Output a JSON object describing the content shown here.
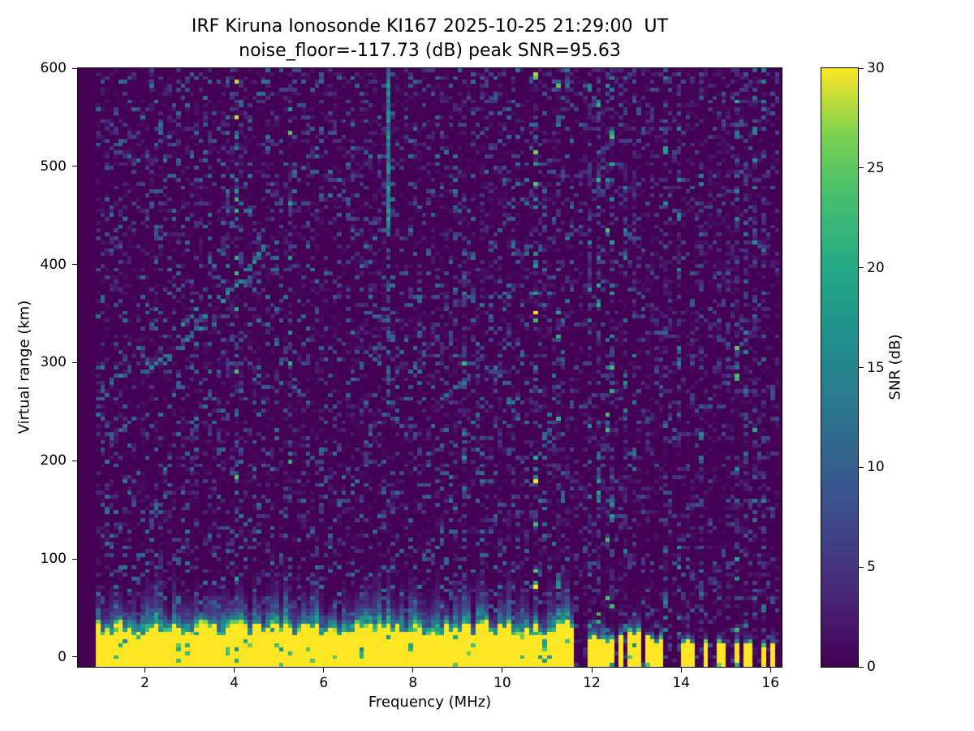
{
  "chart_data": {
    "type": "heatmap",
    "title": "IRF Kiruna Ionosonde KI167 2025-10-25 21:29:00  UT",
    "subtitle": "noise_floor=-117.73 (dB) peak SNR=95.63",
    "xlabel": "Frequency (MHz)",
    "ylabel": "Virtual range (km)",
    "x_ticks": [
      2,
      4,
      6,
      8,
      10,
      12,
      14,
      16
    ],
    "y_ticks": [
      0,
      100,
      200,
      300,
      400,
      500,
      600
    ],
    "x_range_mhz": [
      0.5,
      16.25
    ],
    "y_range_km": [
      -10,
      600
    ],
    "grid": false,
    "colorbar": {
      "label": "SNR (dB)",
      "ticks": [
        0,
        5,
        10,
        15,
        20,
        25,
        30
      ],
      "min": 0,
      "max": 30,
      "colormap": "viridis"
    },
    "background_color": "#440154",
    "features": {
      "noise_floor_db": -117.73,
      "peak_snr_db": 95.63,
      "ground_clutter": {
        "description": "saturated yellow band of strong echoes near 0 km virtual range",
        "top_km_max": 35,
        "freq_start_mhz": 0.95,
        "continuous_until_mhz": 11.55
      },
      "broadcast_band_stripes": {
        "dense_mhz": [
          11.55,
          13.05
        ],
        "sparse_stripes_mhz": [
          13.3,
          13.5,
          14.05,
          14.2,
          14.55,
          14.9,
          15.25,
          15.5,
          15.85,
          16.05
        ]
      },
      "echo_trace_points": [
        [
          1.3,
          283
        ],
        [
          1.7,
          288
        ],
        [
          2.1,
          294
        ],
        [
          2.6,
          306
        ],
        [
          3.0,
          323
        ],
        [
          3.4,
          345
        ],
        [
          3.8,
          366
        ],
        [
          4.2,
          388
        ],
        [
          4.5,
          405
        ],
        [
          4.7,
          420
        ]
      ],
      "interference_line": {
        "freq_mhz": 7.45,
        "from_km": 600,
        "strong_to_km": 435,
        "faint_to_km": 265
      }
    }
  }
}
